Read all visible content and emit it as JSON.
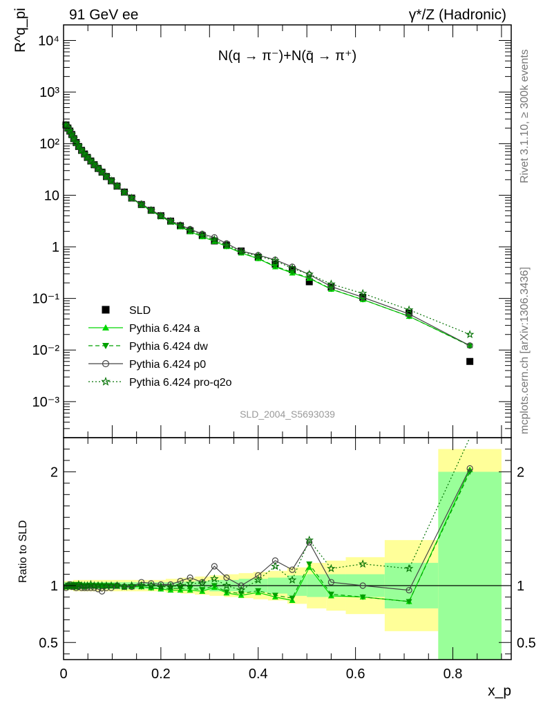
{
  "header": {
    "left": "91 GeV ee",
    "right": "γ*/Z (Hadronic)"
  },
  "side_labels": {
    "rivet": "Rivet 3.1.10, ≥ 300k events",
    "mcplots": "mcplots.cern.ch [arXiv:1306.3436]"
  },
  "watermark": "SLD_2004_S5693039",
  "chart_data": [
    {
      "type": "scatter",
      "title": "N(q → π⁻)+N(q̄ → π⁺)",
      "ylabel": "R^q_pi",
      "xlabel": "",
      "yscale": "log",
      "xlim": [
        0,
        0.92
      ],
      "ylim": [
        0.0002,
        20000
      ],
      "y_ticks": [
        {
          "v": 0.001,
          "label": "10⁻³"
        },
        {
          "v": 0.01,
          "label": "10⁻²"
        },
        {
          "v": 0.1,
          "label": "10⁻¹"
        },
        {
          "v": 1,
          "label": "1"
        },
        {
          "v": 10,
          "label": "10"
        },
        {
          "v": 100,
          "label": "10²"
        },
        {
          "v": 1000,
          "label": "10³"
        },
        {
          "v": 10000,
          "label": "10⁴"
        }
      ],
      "legend_position": "bottom-left",
      "x": [
        0.005,
        0.009,
        0.013,
        0.017,
        0.021,
        0.026,
        0.031,
        0.037,
        0.043,
        0.049,
        0.056,
        0.063,
        0.071,
        0.079,
        0.088,
        0.098,
        0.11,
        0.125,
        0.14,
        0.16,
        0.18,
        0.2,
        0.22,
        0.24,
        0.26,
        0.285,
        0.31,
        0.335,
        0.365,
        0.4,
        0.435,
        0.47,
        0.505,
        0.55,
        0.615,
        0.71,
        0.835
      ],
      "series": [
        {
          "name": "SLD",
          "color": "#000000",
          "marker": "square",
          "values": [
            230,
            200,
            175,
            150,
            125,
            105,
            88,
            74,
            63,
            54,
            46,
            39,
            33,
            28,
            23,
            19,
            15,
            11.5,
            8.8,
            6.6,
            5.1,
            4.0,
            3.15,
            2.55,
            2.05,
            1.65,
            1.3,
            1.08,
            0.83,
            0.63,
            0.46,
            0.36,
            0.21,
            0.165,
            0.105,
            0.052,
            0.006
          ]
        },
        {
          "name": "Pythia 6.424 a",
          "color": "#00d800",
          "marker": "triangle-up",
          "line": "solid",
          "values": [
            227,
            198,
            174,
            149,
            125,
            104,
            88,
            74,
            62,
            54,
            46,
            39,
            33,
            28,
            23,
            19,
            15,
            11.3,
            8.7,
            6.5,
            5.0,
            3.9,
            3.05,
            2.45,
            1.97,
            1.57,
            1.28,
            1.01,
            0.76,
            0.59,
            0.41,
            0.31,
            0.245,
            0.15,
            0.095,
            0.045,
            0.0122
          ]
        },
        {
          "name": "Pythia 6.424 dw",
          "color": "#00a000",
          "marker": "triangle-down",
          "line": "dashed",
          "values": [
            228,
            199,
            175,
            150,
            126,
            104,
            89,
            74,
            62,
            54,
            46,
            39,
            33,
            28,
            23,
            19,
            15,
            11.3,
            8.7,
            6.5,
            5.0,
            3.9,
            3.07,
            2.48,
            2.0,
            1.59,
            1.3,
            1.02,
            0.77,
            0.6,
            0.42,
            0.32,
            0.25,
            0.152,
            0.095,
            0.045,
            0.012
          ]
        },
        {
          "name": "Pythia 6.424 p0",
          "color": "#444444",
          "marker": "circle-open",
          "line": "solid",
          "values": [
            225,
            200,
            177,
            148,
            124,
            103,
            87,
            73,
            62,
            53,
            45,
            38,
            32,
            27.5,
            22.5,
            18.7,
            15,
            11.4,
            8.7,
            6.8,
            5.2,
            4.05,
            3.2,
            2.65,
            2.2,
            1.78,
            1.52,
            1.16,
            0.83,
            0.69,
            0.56,
            0.41,
            0.29,
            0.17,
            0.105,
            0.05,
            0.0122
          ]
        },
        {
          "name": "Pythia 6.424 pro-q2o",
          "color": "#007000",
          "marker": "star",
          "line": "dotted",
          "values": [
            228,
            200,
            176,
            150,
            125,
            104,
            89,
            74,
            63,
            54,
            46,
            39,
            33,
            28,
            23,
            19,
            15,
            11.4,
            8.8,
            6.6,
            5.1,
            3.95,
            3.12,
            2.55,
            2.1,
            1.69,
            1.38,
            1.08,
            0.8,
            0.66,
            0.54,
            0.38,
            0.295,
            0.19,
            0.125,
            0.06,
            0.02
          ]
        }
      ]
    },
    {
      "type": "line",
      "title": "",
      "ylabel": "Ratio to SLD",
      "xlabel": "x_p",
      "xlim": [
        0,
        0.92
      ],
      "ylim": [
        0.35,
        2.3
      ],
      "x_ticks": [
        {
          "v": 0,
          "label": "0"
        },
        {
          "v": 0.2,
          "label": "0.2"
        },
        {
          "v": 0.4,
          "label": "0.4"
        },
        {
          "v": 0.6,
          "label": "0.6"
        },
        {
          "v": 0.8,
          "label": "0.8"
        }
      ],
      "y_ticks": [
        {
          "v": 0.5,
          "label": "0.5"
        },
        {
          "v": 1,
          "label": "1"
        },
        {
          "v": 2,
          "label": "2"
        }
      ],
      "band_edges": [
        0.0,
        0.02,
        0.04,
        0.06,
        0.08,
        0.1,
        0.12,
        0.15,
        0.18,
        0.21,
        0.24,
        0.27,
        0.3,
        0.33,
        0.36,
        0.39,
        0.42,
        0.46,
        0.5,
        0.54,
        0.58,
        0.66,
        0.77,
        0.9
      ],
      "band_stat": [
        0.03,
        0.03,
        0.03,
        0.03,
        0.03,
        0.03,
        0.03,
        0.03,
        0.03,
        0.03,
        0.035,
        0.04,
        0.05,
        0.05,
        0.06,
        0.06,
        0.07,
        0.09,
        0.1,
        0.1,
        0.1,
        0.2,
        1.0
      ],
      "band_total": [
        0.04,
        0.05,
        0.05,
        0.05,
        0.05,
        0.05,
        0.05,
        0.05,
        0.05,
        0.06,
        0.07,
        0.08,
        0.09,
        0.1,
        0.11,
        0.12,
        0.13,
        0.16,
        0.2,
        0.22,
        0.25,
        0.4,
        1.2
      ],
      "x": [
        0.005,
        0.009,
        0.013,
        0.017,
        0.021,
        0.026,
        0.031,
        0.037,
        0.043,
        0.049,
        0.056,
        0.063,
        0.071,
        0.079,
        0.088,
        0.098,
        0.11,
        0.125,
        0.14,
        0.16,
        0.18,
        0.2,
        0.22,
        0.24,
        0.26,
        0.285,
        0.31,
        0.335,
        0.365,
        0.4,
        0.435,
        0.47,
        0.505,
        0.55,
        0.615,
        0.71,
        0.835
      ],
      "series": [
        {
          "name": "Pythia 6.424 a",
          "color": "#00d800",
          "marker": "triangle-up",
          "line": "solid",
          "values": [
            0.99,
            0.99,
            1.0,
            0.99,
            1.0,
            0.99,
            1.0,
            1.0,
            0.99,
            1.0,
            1.0,
            1.0,
            1.01,
            1.0,
            1.0,
            1.0,
            1.0,
            0.99,
            0.99,
            0.99,
            0.98,
            0.97,
            0.96,
            0.96,
            0.96,
            0.95,
            0.985,
            0.935,
            0.915,
            0.94,
            0.9,
            0.87,
            1.16,
            0.91,
            0.9,
            0.86,
            2.02
          ]
        },
        {
          "name": "Pythia 6.424 dw",
          "color": "#00a000",
          "marker": "triangle-down",
          "line": "dashed",
          "values": [
            0.99,
            1.0,
            1.0,
            1.0,
            1.01,
            0.99,
            1.01,
            1.0,
            0.99,
            1.0,
            1.0,
            1.0,
            1.0,
            1.0,
            1.0,
            1.0,
            1.0,
            0.99,
            0.99,
            0.99,
            0.98,
            0.975,
            0.975,
            0.975,
            0.975,
            0.965,
            1.0,
            0.945,
            0.93,
            0.955,
            0.915,
            0.89,
            1.19,
            0.925,
            0.9,
            0.86,
            2.0
          ]
        },
        {
          "name": "Pythia 6.424 p0",
          "color": "#444444",
          "marker": "circle-open",
          "line": "solid",
          "values": [
            0.98,
            1.0,
            1.01,
            0.99,
            0.99,
            0.98,
            0.99,
            0.98,
            0.98,
            0.98,
            0.98,
            0.98,
            0.97,
            0.95,
            0.98,
            0.98,
            1.0,
            0.99,
            0.99,
            1.03,
            1.02,
            1.01,
            1.01,
            1.04,
            1.07,
            1.03,
            1.17,
            1.07,
            1.0,
            1.09,
            1.22,
            1.14,
            1.38,
            1.03,
            1.0,
            0.96,
            2.03
          ]
        },
        {
          "name": "Pythia 6.424 pro-q2o",
          "color": "#007000",
          "marker": "star",
          "line": "dotted",
          "values": [
            0.99,
            1.0,
            1.0,
            1.0,
            1.0,
            0.99,
            1.01,
            1.0,
            1.0,
            1.0,
            1.01,
            1.0,
            1.0,
            1.0,
            1.0,
            1.0,
            1.0,
            0.99,
            1.0,
            1.0,
            1.0,
            0.99,
            0.99,
            1.0,
            1.02,
            1.02,
            1.06,
            1.0,
            0.96,
            1.05,
            1.17,
            1.05,
            1.4,
            1.15,
            1.19,
            1.15,
            3.3
          ]
        }
      ]
    }
  ]
}
